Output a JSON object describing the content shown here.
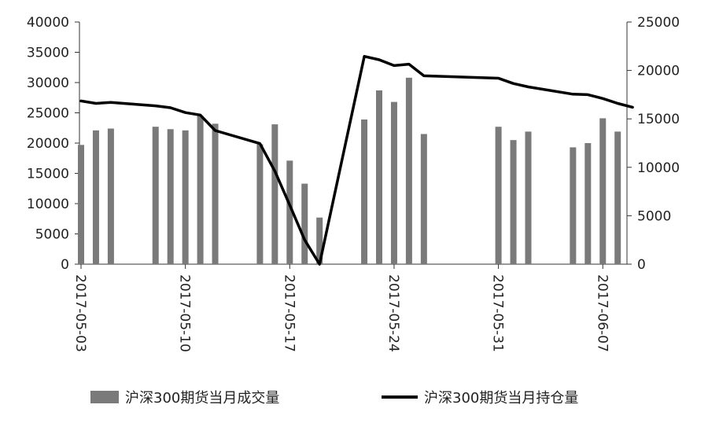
{
  "chart_data": {
    "type": "bar+line",
    "x": [
      "2017-05-03",
      "2017-05-04",
      "2017-05-05",
      "2017-05-08",
      "2017-05-09",
      "2017-05-10",
      "2017-05-11",
      "2017-05-12",
      "2017-05-15",
      "2017-05-16",
      "2017-05-17",
      "2017-05-18",
      "2017-05-19",
      "2017-05-22",
      "2017-05-23",
      "2017-05-24",
      "2017-05-25",
      "2017-05-26",
      "2017-05-31",
      "2017-06-01",
      "2017-06-02",
      "2017-06-05",
      "2017-06-06",
      "2017-06-07",
      "2017-06-08",
      "2017-06-09"
    ],
    "x_tick_labels": [
      "2017-05-03",
      "2017-05-10",
      "2017-05-17",
      "2017-05-24",
      "2017-05-31",
      "2017-06-07"
    ],
    "left_axis": {
      "ylim": [
        0,
        40000
      ],
      "ticks": [
        "0",
        "5000",
        "10000",
        "15000",
        "20000",
        "25000",
        "30000",
        "35000",
        "40000"
      ]
    },
    "right_axis": {
      "ylim": [
        0,
        25000
      ],
      "ticks": [
        "0",
        "5000",
        "10000",
        "15000",
        "20000",
        "25000"
      ]
    },
    "series": [
      {
        "name": "沪深300期货当月成交量",
        "type": "bar",
        "axis": "left",
        "color": "#7a7a7a",
        "points": [
          {
            "x": "2017-05-03",
            "y": 19700
          },
          {
            "x": "2017-05-04",
            "y": 22100
          },
          {
            "x": "2017-05-05",
            "y": 22400
          },
          {
            "x": "2017-05-08",
            "y": 22700
          },
          {
            "x": "2017-05-09",
            "y": 22300
          },
          {
            "x": "2017-05-10",
            "y": 22100
          },
          {
            "x": "2017-05-11",
            "y": 24500
          },
          {
            "x": "2017-05-12",
            "y": 23200
          },
          {
            "x": "2017-05-15",
            "y": 19800
          },
          {
            "x": "2017-05-16",
            "y": 23100
          },
          {
            "x": "2017-05-17",
            "y": 17100
          },
          {
            "x": "2017-05-18",
            "y": 13300
          },
          {
            "x": "2017-05-19",
            "y": 7700
          },
          {
            "x": "2017-05-22",
            "y": 23900
          },
          {
            "x": "2017-05-23",
            "y": 28700
          },
          {
            "x": "2017-05-24",
            "y": 26800
          },
          {
            "x": "2017-05-25",
            "y": 30800
          },
          {
            "x": "2017-05-26",
            "y": 21500
          },
          {
            "x": "2017-05-31",
            "y": 22700
          },
          {
            "x": "2017-06-01",
            "y": 20500
          },
          {
            "x": "2017-06-02",
            "y": 21900
          },
          {
            "x": "2017-06-05",
            "y": 19300
          },
          {
            "x": "2017-06-06",
            "y": 20000
          },
          {
            "x": "2017-06-07",
            "y": 24100
          },
          {
            "x": "2017-06-08",
            "y": 21900
          }
        ]
      },
      {
        "name": "沪深300期货当月持仓量",
        "type": "line",
        "axis": "right",
        "color": "#000000",
        "points": [
          {
            "x": "2017-05-03",
            "y": 16850
          },
          {
            "x": "2017-05-04",
            "y": 16600
          },
          {
            "x": "2017-05-05",
            "y": 16700
          },
          {
            "x": "2017-05-08",
            "y": 16350
          },
          {
            "x": "2017-05-09",
            "y": 16150
          },
          {
            "x": "2017-05-10",
            "y": 15650
          },
          {
            "x": "2017-05-11",
            "y": 15400
          },
          {
            "x": "2017-05-12",
            "y": 13800
          },
          {
            "x": "2017-05-15",
            "y": 12450
          },
          {
            "x": "2017-05-16",
            "y": 9600
          },
          {
            "x": "2017-05-17",
            "y": 6100
          },
          {
            "x": "2017-05-18",
            "y": 2500
          },
          {
            "x": "2017-05-19",
            "y": 0
          },
          {
            "x": "2017-05-22",
            "y": 21450
          },
          {
            "x": "2017-05-23",
            "y": 21100
          },
          {
            "x": "2017-05-24",
            "y": 20500
          },
          {
            "x": "2017-05-25",
            "y": 20650
          },
          {
            "x": "2017-05-26",
            "y": 19450
          },
          {
            "x": "2017-05-31",
            "y": 19200
          },
          {
            "x": "2017-06-01",
            "y": 18650
          },
          {
            "x": "2017-06-02",
            "y": 18300
          },
          {
            "x": "2017-06-05",
            "y": 17550
          },
          {
            "x": "2017-06-06",
            "y": 17500
          },
          {
            "x": "2017-06-07",
            "y": 17100
          },
          {
            "x": "2017-06-08",
            "y": 16600
          },
          {
            "x": "2017-06-09",
            "y": 16200
          }
        ]
      }
    ],
    "grid": false,
    "legend_position": "bottom"
  }
}
